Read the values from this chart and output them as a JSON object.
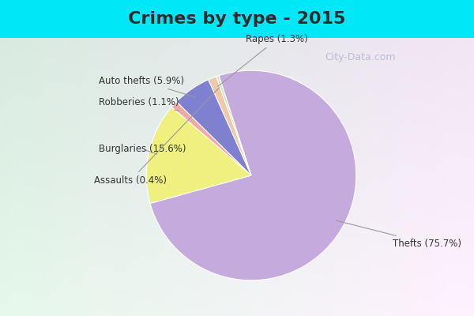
{
  "title": "Crimes by type - 2015",
  "values": [
    75.7,
    15.6,
    1.1,
    5.9,
    1.3,
    0.4
  ],
  "labels": [
    "Thefts",
    "Burglaries",
    "Robberies",
    "Auto thefts",
    "Rapes",
    "Assaults"
  ],
  "colors": [
    "#c5aade",
    "#f0f080",
    "#f0a8a8",
    "#8080d0",
    "#f0c8a8",
    "#c8e8c8"
  ],
  "label_texts": [
    "Thefts (75.7%)",
    "Burglaries (15.6%)",
    "Robberies (1.1%)",
    "Auto thefts (5.9%)",
    "Rapes (1.3%)",
    "Assaults (0.4%)"
  ],
  "bg_cyan": "#00e8f8",
  "bg_main_color": "#d8edd8",
  "title_fontsize": 16,
  "figsize": [
    6.0,
    4.0
  ],
  "dpi": 100,
  "watermark": "City-Data.com"
}
